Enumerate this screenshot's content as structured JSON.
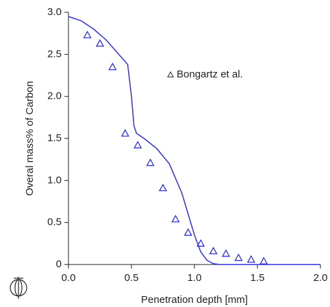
{
  "chart_data": {
    "type": "line",
    "x_label": "Penetration depth  [mm]",
    "y_label": "Overal mass% of Carbon",
    "xlim": [
      0,
      2
    ],
    "ylim": [
      0,
      3
    ],
    "xticks": [
      {
        "value": 0,
        "label": "0.0"
      },
      0.5,
      {
        "value": 1,
        "label": "1.0"
      },
      1.5,
      {
        "value": 2,
        "label": "2.0"
      }
    ],
    "yticks": [
      0,
      0.5,
      {
        "value": 1,
        "label": "1.0"
      },
      1.5,
      {
        "value": 2,
        "label": "2.0"
      },
      2.5,
      {
        "value": 3,
        "label": "3.0"
      }
    ],
    "series": [
      {
        "color": "#2f2fe0",
        "style": "line",
        "x": [
          0,
          0.1,
          0.2,
          0.3,
          0.4,
          0.47,
          0.5,
          0.52,
          0.54,
          0.6,
          0.7,
          0.8,
          0.9,
          0.95,
          1.0,
          1.05,
          1.1,
          1.15,
          1.2,
          2.0
        ],
        "values": [
          2.95,
          2.9,
          2.8,
          2.67,
          2.5,
          2.38,
          2.0,
          1.65,
          1.56,
          1.5,
          1.38,
          1.2,
          0.85,
          0.6,
          0.35,
          0.15,
          0.05,
          0.01,
          0,
          0
        ]
      },
      {
        "name": "Bongartz et al.",
        "color": "#2f2fe0",
        "style": "triangle",
        "x": [
          0.15,
          0.25,
          0.35,
          0.45,
          0.55,
          0.65,
          0.75,
          0.85,
          0.95,
          1.05,
          1.15,
          1.25,
          1.35,
          1.45,
          1.55
        ],
        "values": [
          2.73,
          2.63,
          2.35,
          1.56,
          1.42,
          1.21,
          0.91,
          0.54,
          0.38,
          0.25,
          0.16,
          0.13,
          0.08,
          0.06,
          0.04
        ]
      }
    ]
  }
}
